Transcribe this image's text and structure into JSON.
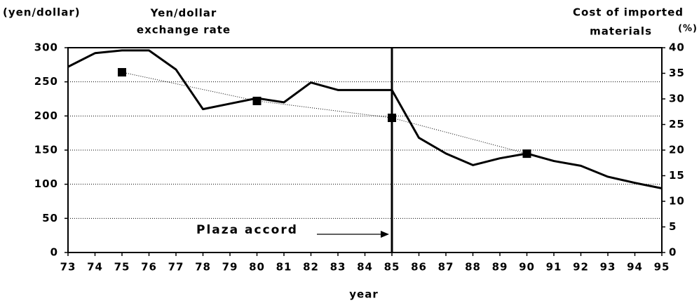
{
  "chart_data": {
    "type": "line",
    "y_label": "(yen/dollar)",
    "y2_label": "(%)",
    "x_label": "year",
    "annotations": {
      "line_label": [
        "Yen/dollar",
        "exchange rate"
      ],
      "line2_label": [
        "Cost of imported",
        "materials"
      ],
      "event": "Plaza accord",
      "event_x": 85
    },
    "xlim": [
      73,
      95
    ],
    "xticks": [
      73,
      74,
      75,
      76,
      77,
      78,
      79,
      80,
      81,
      82,
      83,
      84,
      85,
      86,
      87,
      88,
      89,
      90,
      91,
      92,
      93,
      94,
      95
    ],
    "ylim": [
      0,
      300
    ],
    "yticks": [
      0,
      50,
      100,
      150,
      200,
      250,
      300
    ],
    "y2lim": [
      0,
      40
    ],
    "y2ticks": [
      0,
      5,
      10,
      15,
      20,
      25,
      30,
      35,
      40
    ],
    "grid": true,
    "series": [
      {
        "name": "Yen/dollar exchange rate",
        "color": "#000000",
        "style": "solid",
        "x": [
          73,
          74,
          75,
          76,
          77,
          78,
          79,
          80,
          81,
          82,
          83,
          84,
          85,
          86,
          87,
          88,
          89,
          90,
          91,
          92,
          93,
          94,
          95
        ],
        "values": [
          272,
          292,
          296,
          296,
          268,
          210,
          218,
          226,
          220,
          249,
          238,
          238,
          238,
          168,
          145,
          128,
          138,
          145,
          134,
          127,
          111,
          102,
          94
        ]
      },
      {
        "name": "Cost of imported materials",
        "color": "#000000",
        "style": "dotted",
        "axis": "y2",
        "x": [
          75,
          80,
          85,
          90
        ],
        "values": [
          35.2,
          29.6,
          26.3,
          19.3
        ]
      }
    ]
  }
}
